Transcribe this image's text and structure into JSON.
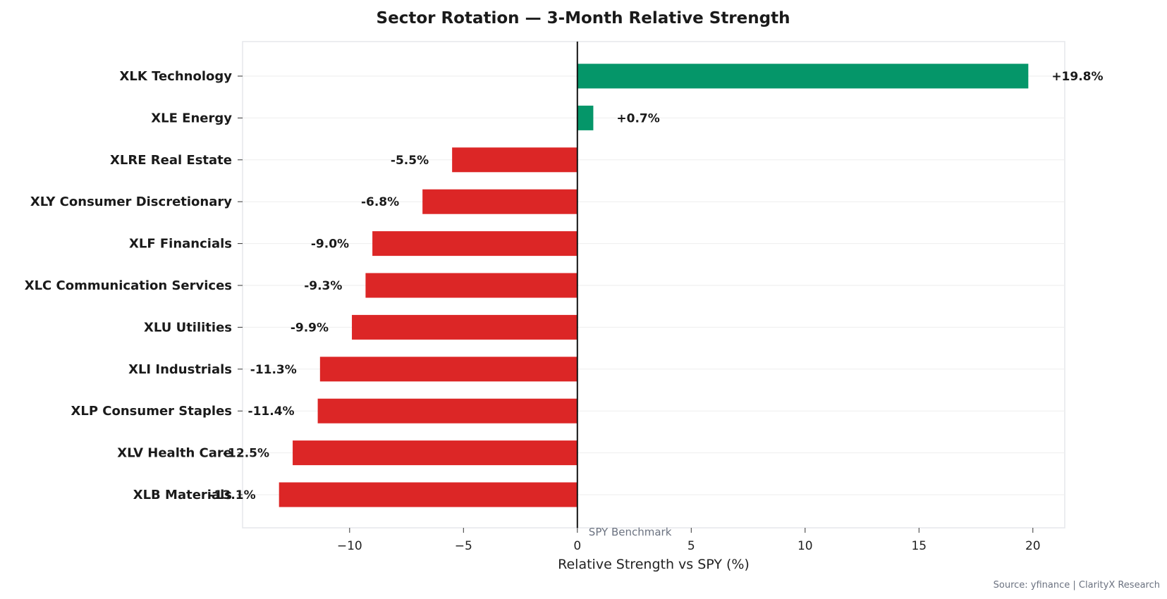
{
  "chart_data": {
    "type": "bar",
    "orientation": "horizontal",
    "title": "Sector Rotation — 3-Month Relative Strength",
    "xlabel": "Relative Strength vs SPY (%)",
    "ylabel": "",
    "xlim": [
      -14.7,
      21.4
    ],
    "xticks": [
      -10,
      -5,
      0,
      5,
      10,
      15,
      20
    ],
    "xtick_labels": [
      "−10",
      "−5",
      "0",
      "5",
      "10",
      "15",
      "20"
    ],
    "grid": "horizontal light",
    "categories": [
      "XLK  Technology",
      "XLE  Energy",
      "XLRE  Real Estate",
      "XLY  Consumer Discretionary",
      "XLF  Financials",
      "XLC  Communication Services",
      "XLU  Utilities",
      "XLI  Industrials",
      "XLP  Consumer Staples",
      "XLV  Health Care",
      "XLB  Materials"
    ],
    "values": [
      19.8,
      0.7,
      -5.5,
      -6.8,
      -9.0,
      -9.3,
      -9.9,
      -11.3,
      -11.4,
      -12.5,
      -13.1
    ],
    "value_labels": [
      "+19.8%",
      "+0.7%",
      "-5.5%",
      "-6.8%",
      "-9.0%",
      "-9.3%",
      "-9.9%",
      "-11.3%",
      "-11.4%",
      "-12.5%",
      "-13.1%"
    ],
    "benchmark_label": "SPY Benchmark",
    "colors": {
      "positive": "#059669",
      "negative": "#dc2626",
      "zero_line": "#111111",
      "grid": "#eeeeee",
      "frame": "#e5e7eb"
    },
    "source": "Source: yfinance | ClarityX Research"
  }
}
